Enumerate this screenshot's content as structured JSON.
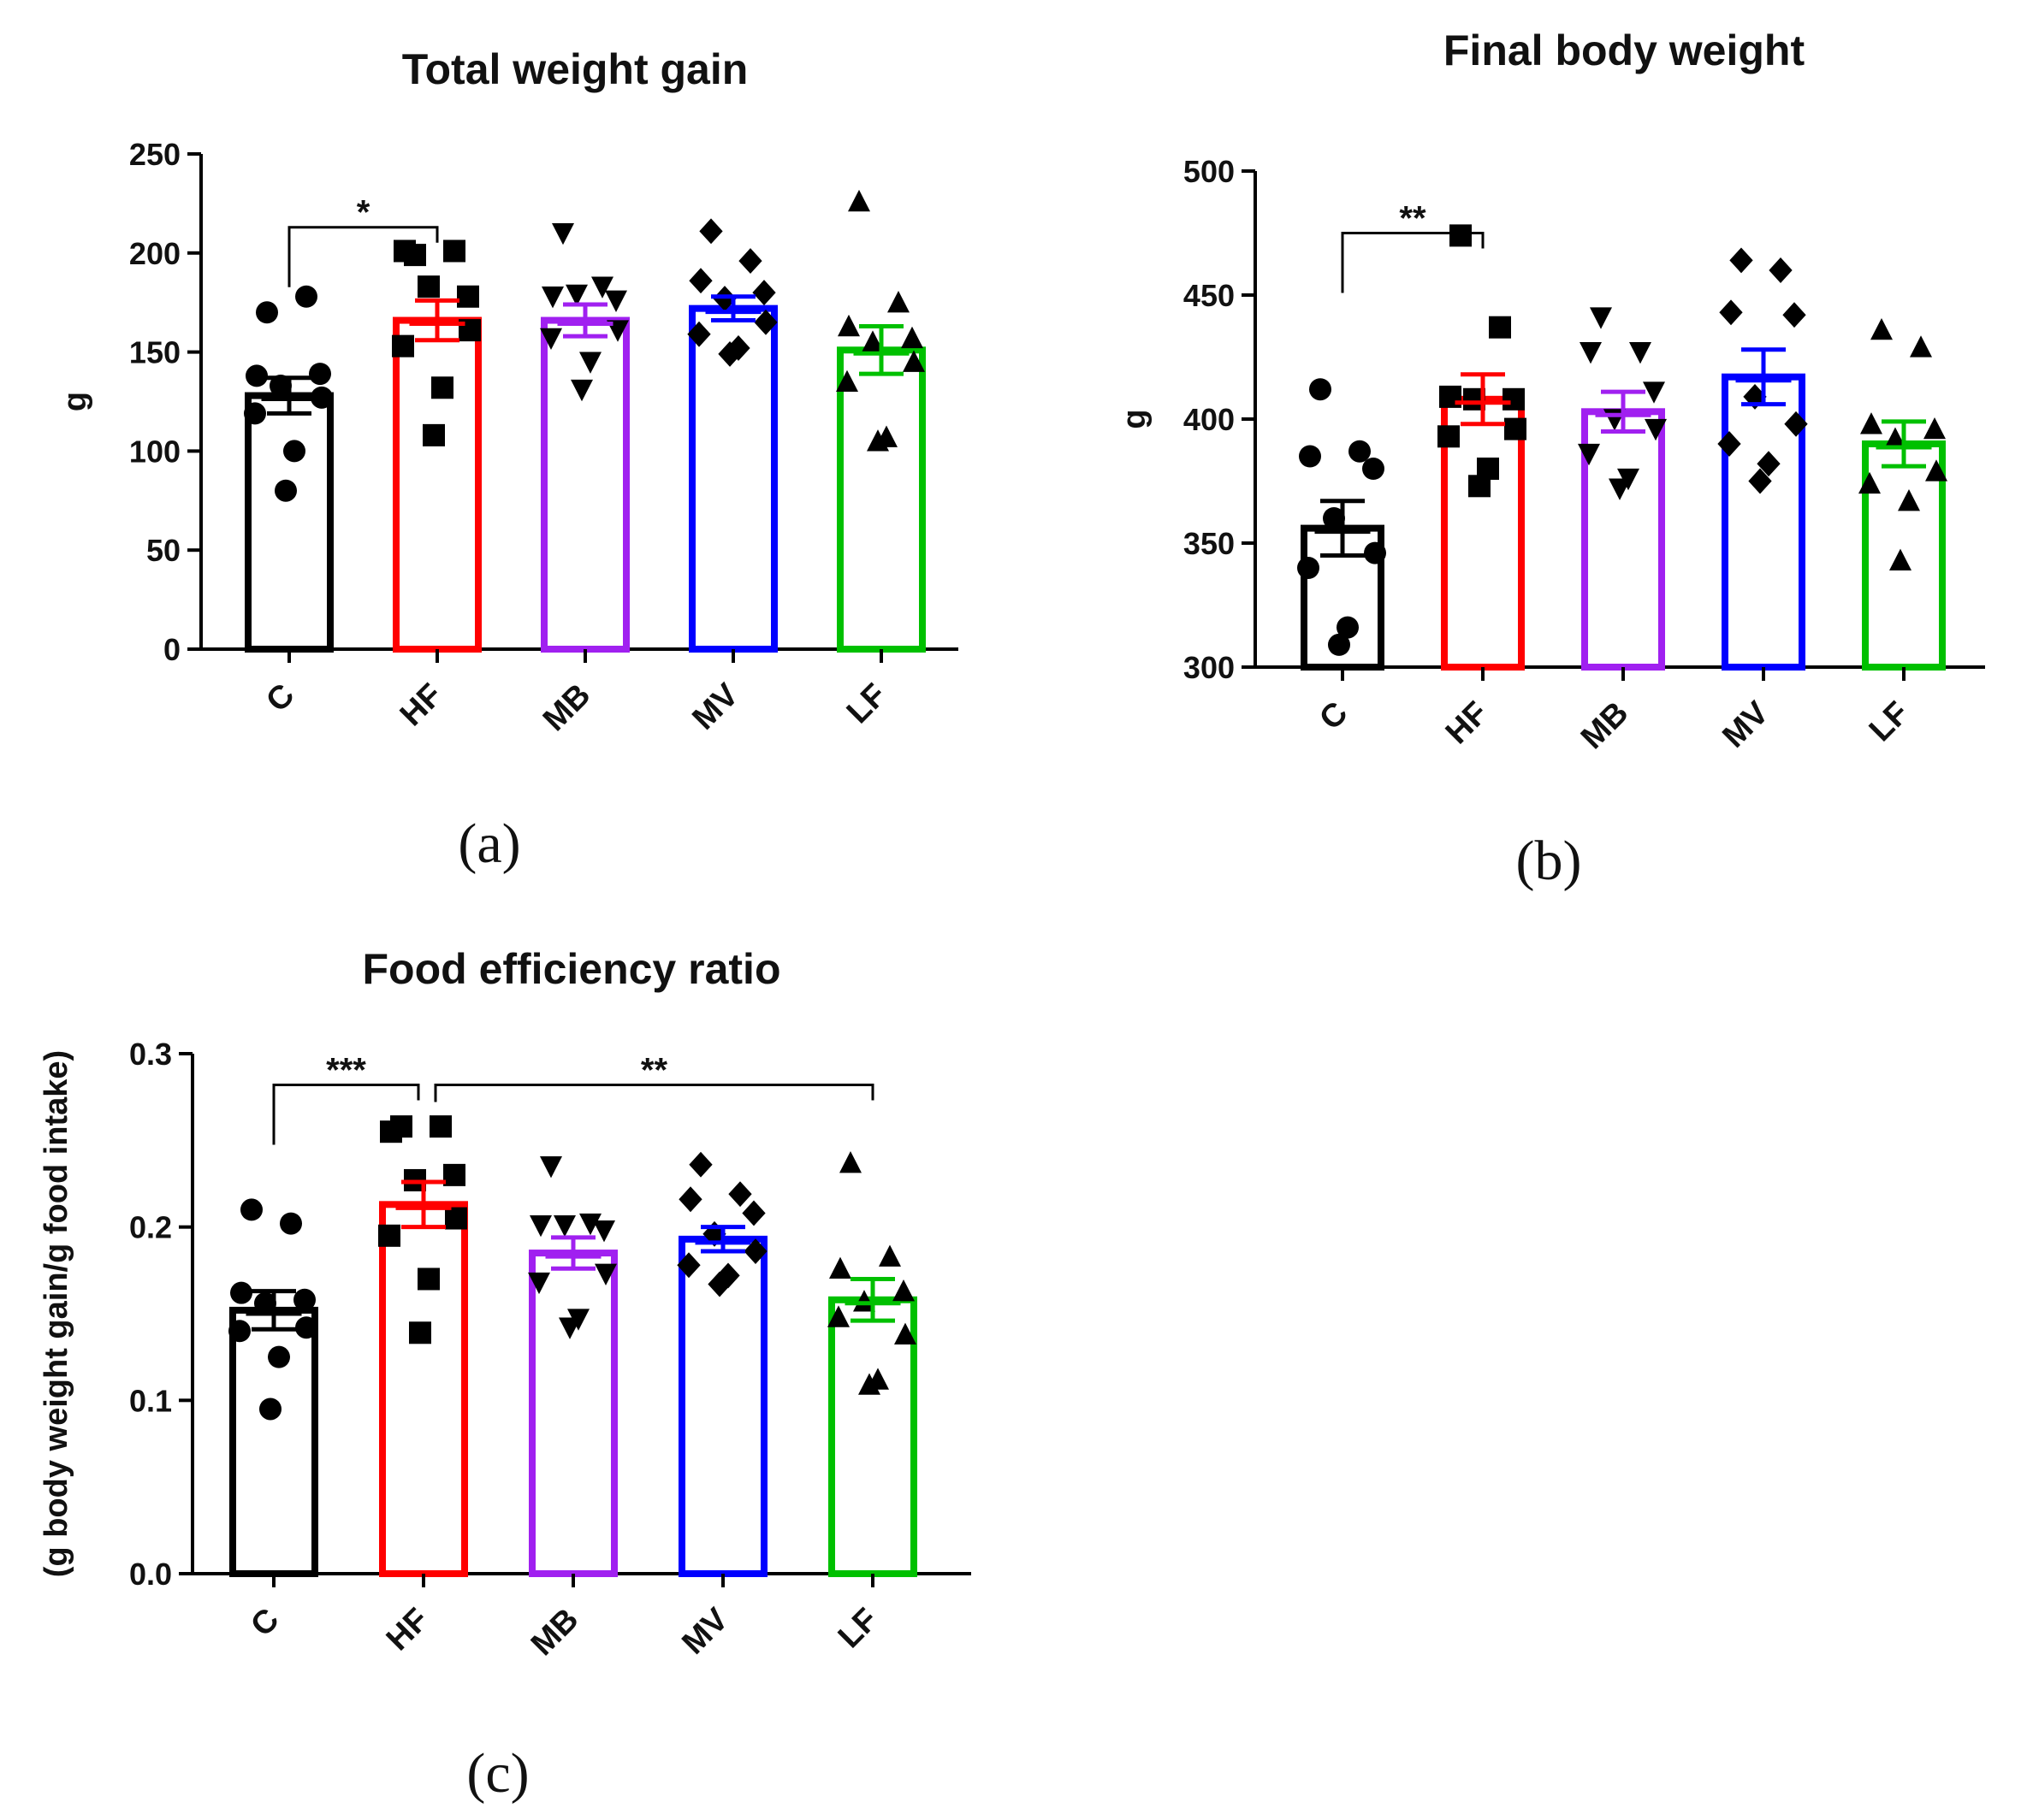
{
  "colors": {
    "C": "#000000",
    "HF": "#ff0000",
    "MB": "#a020f0",
    "MV": "#0000ff",
    "LF": "#00c000",
    "points": "#000000"
  },
  "chart_data": [
    {
      "id": "a",
      "type": "bar",
      "panel_label": "(a)",
      "title": "Total weight gain",
      "xlabel": "",
      "ylabel": "g",
      "ylim": [
        0,
        250
      ],
      "yticks": [
        0,
        50,
        100,
        150,
        200,
        250
      ],
      "ytick_labels": [
        "0",
        "50",
        "100",
        "150",
        "200",
        "250"
      ],
      "categories": [
        "C",
        "HF",
        "MB",
        "MV",
        "LF"
      ],
      "markers": [
        "circle",
        "square",
        "triangle-down",
        "diamond",
        "triangle-up"
      ],
      "means": [
        128,
        166,
        166,
        172,
        151
      ],
      "sem": [
        9,
        10,
        8,
        6,
        12
      ],
      "points": [
        [
          170,
          178,
          138,
          139,
          133,
          127,
          119,
          100,
          80
        ],
        [
          199,
          201,
          201,
          178,
          183,
          161,
          153,
          132,
          108
        ],
        [
          210,
          183,
          178,
          176,
          179,
          161,
          157,
          145,
          131
        ],
        [
          211,
          196,
          186,
          180,
          177,
          165,
          159,
          152,
          149
        ],
        [
          226,
          175,
          163,
          157,
          155,
          145,
          135,
          107,
          105
        ]
      ],
      "significance": [
        {
          "from": "C",
          "to": "HF",
          "label": "*",
          "y": 213
        }
      ]
    },
    {
      "id": "b",
      "type": "bar",
      "panel_label": "(b)",
      "title": "Final body weight",
      "xlabel": "",
      "ylabel": "g",
      "ylim": [
        300,
        500
      ],
      "yticks": [
        300,
        350,
        400,
        450,
        500
      ],
      "ytick_labels": [
        "300",
        "350",
        "400",
        "450",
        "500"
      ],
      "categories": [
        "C",
        "HF",
        "MB",
        "MV",
        "LF"
      ],
      "markers": [
        "circle",
        "square",
        "triangle-down",
        "diamond",
        "triangle-up"
      ],
      "means": [
        356,
        408,
        403,
        417,
        390
      ],
      "sem": [
        11,
        10,
        8,
        11,
        9
      ],
      "points": [
        [
          412,
          387,
          385,
          380,
          360,
          346,
          340,
          316,
          309
        ],
        [
          474,
          437,
          409,
          408,
          408,
          396,
          393,
          380,
          373
        ],
        [
          441,
          427,
          427,
          411,
          400,
          396,
          386,
          376,
          372
        ],
        [
          464,
          460,
          443,
          442,
          409,
          398,
          390,
          382,
          375
        ],
        [
          436,
          429,
          398,
          396,
          392,
          379,
          374,
          367,
          343
        ]
      ],
      "significance": [
        {
          "from": "C",
          "to": "HF",
          "label": "**",
          "y": 475
        }
      ]
    },
    {
      "id": "c",
      "type": "bar",
      "panel_label": "(c)",
      "title": "Food efficiency ratio",
      "xlabel": "",
      "ylabel": "(g body weight gain/g food intake)",
      "ylim": [
        0,
        0.3
      ],
      "yticks": [
        0,
        0.1,
        0.2,
        0.3
      ],
      "ytick_labels": [
        "0.0",
        "0.1",
        "0.2",
        "0.3"
      ],
      "categories": [
        "C",
        "HF",
        "MB",
        "MV",
        "LF"
      ],
      "markers": [
        "circle",
        "square",
        "triangle-down",
        "diamond",
        "triangle-up"
      ],
      "means": [
        0.152,
        0.213,
        0.185,
        0.193,
        0.158
      ],
      "sem": [
        0.011,
        0.013,
        0.009,
        0.007,
        0.012
      ],
      "points": [
        [
          0.21,
          0.202,
          0.162,
          0.158,
          0.156,
          0.142,
          0.14,
          0.125,
          0.095
        ],
        [
          0.258,
          0.258,
          0.255,
          0.23,
          0.227,
          0.205,
          0.195,
          0.17,
          0.139
        ],
        [
          0.235,
          0.202,
          0.201,
          0.198,
          0.201,
          0.173,
          0.168,
          0.147,
          0.142
        ],
        [
          0.236,
          0.219,
          0.216,
          0.208,
          0.196,
          0.186,
          0.178,
          0.172,
          0.167
        ],
        [
          0.237,
          0.183,
          0.176,
          0.163,
          0.157,
          0.138,
          0.148,
          0.112,
          0.109
        ]
      ],
      "significance": [
        {
          "from": "C",
          "to": "HF",
          "label": "***",
          "y": 0.282
        },
        {
          "from": "HF",
          "to": "LF",
          "label": "**",
          "y": 0.282
        }
      ]
    }
  ]
}
